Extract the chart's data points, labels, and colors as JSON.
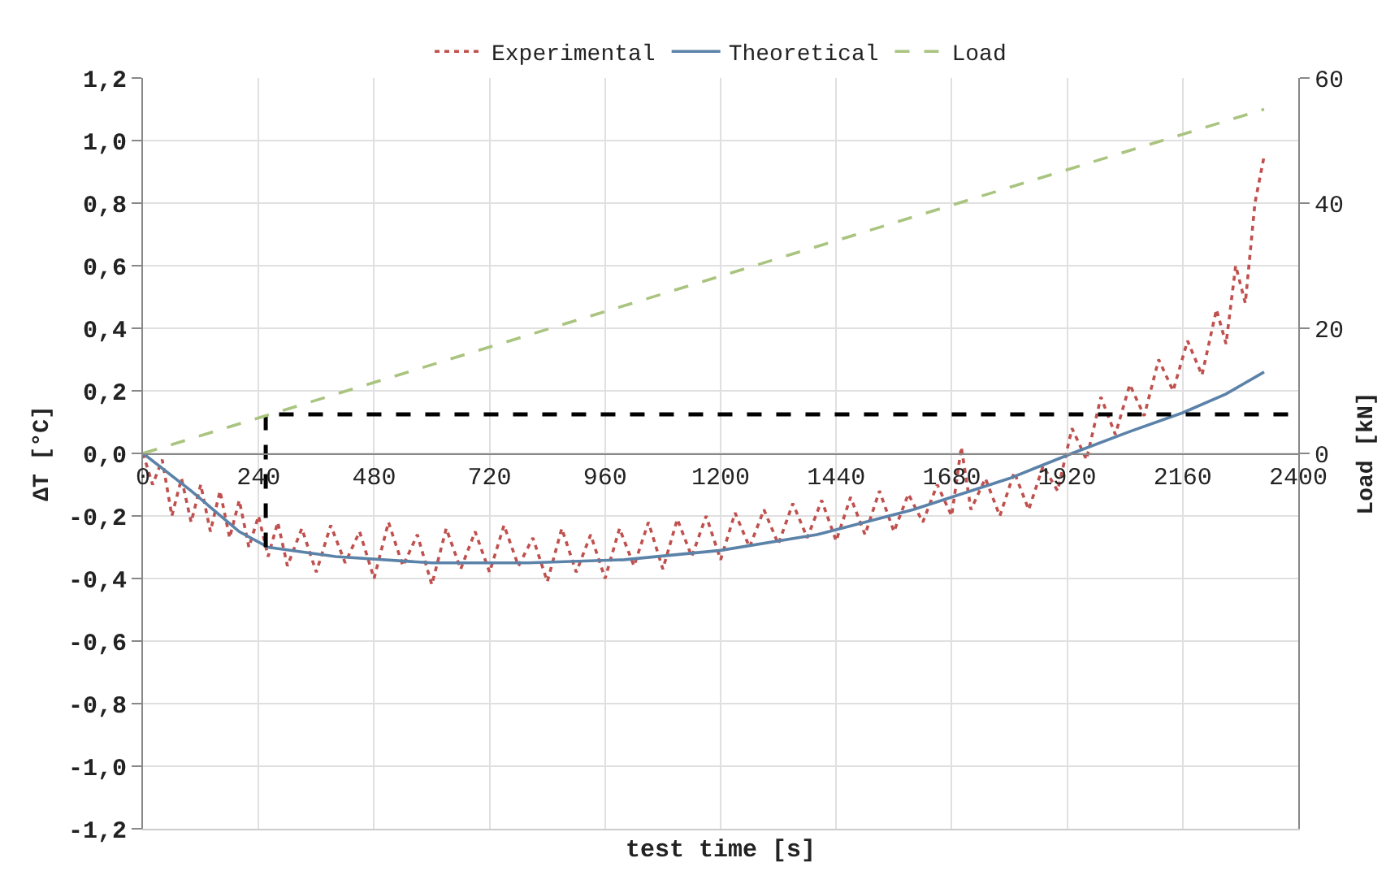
{
  "chart_data": {
    "type": "line",
    "xlabel": "test time [s]",
    "ylabel": "ΔT [°C]",
    "y2label": "Load [kN]",
    "xlim": [
      0,
      2400
    ],
    "xticks": [
      0,
      240,
      480,
      720,
      960,
      1200,
      1440,
      1680,
      1920,
      2160,
      2400
    ],
    "ylim": [
      -1.2,
      1.2
    ],
    "yticks": [
      {
        "value": -1.2,
        "label": "-1,2"
      },
      {
        "value": -1.0,
        "label": "-1,0"
      },
      {
        "value": -0.8,
        "label": "-0,8"
      },
      {
        "value": -0.6,
        "label": "-0,6"
      },
      {
        "value": -0.4,
        "label": "-0,4"
      },
      {
        "value": -0.2,
        "label": "-0,2"
      },
      {
        "value": 0,
        "label": "0,0"
      },
      {
        "value": 0.2,
        "label": "0,2"
      },
      {
        "value": 0.4,
        "label": "0,4"
      },
      {
        "value": 0.6,
        "label": "0,6"
      },
      {
        "value": 0.8,
        "label": "0,8"
      },
      {
        "value": 1.0,
        "label": "1,0"
      },
      {
        "value": 1.2,
        "label": "1,2"
      }
    ],
    "y2lim": [
      -60,
      60
    ],
    "y2ticks": [
      0,
      20,
      40,
      60
    ],
    "grid": true,
    "legend": "top",
    "marker": "none",
    "series": [
      {
        "name": "Experimental",
        "color": "#c0504d",
        "line_style": "dotted",
        "x": [
          0,
          20,
          40,
          60,
          80,
          100,
          120,
          140,
          160,
          180,
          200,
          220,
          240,
          260,
          280,
          300,
          330,
          360,
          390,
          420,
          450,
          480,
          510,
          540,
          570,
          600,
          630,
          660,
          690,
          720,
          750,
          780,
          810,
          840,
          870,
          900,
          930,
          960,
          990,
          1020,
          1050,
          1080,
          1110,
          1140,
          1170,
          1200,
          1230,
          1260,
          1290,
          1320,
          1350,
          1380,
          1410,
          1440,
          1470,
          1500,
          1530,
          1560,
          1590,
          1620,
          1650,
          1680,
          1700,
          1720,
          1750,
          1780,
          1810,
          1840,
          1870,
          1900,
          1930,
          1960,
          1990,
          2020,
          2050,
          2080,
          2110,
          2140,
          2170,
          2200,
          2230,
          2250,
          2270,
          2290,
          2310,
          2329
        ],
        "values": [
          0.0,
          -0.1,
          -0.02,
          -0.2,
          -0.08,
          -0.22,
          -0.1,
          -0.25,
          -0.12,
          -0.27,
          -0.15,
          -0.3,
          -0.2,
          -0.33,
          -0.22,
          -0.36,
          -0.24,
          -0.38,
          -0.23,
          -0.35,
          -0.25,
          -0.4,
          -0.22,
          -0.36,
          -0.26,
          -0.42,
          -0.24,
          -0.37,
          -0.25,
          -0.38,
          -0.23,
          -0.36,
          -0.27,
          -0.41,
          -0.24,
          -0.38,
          -0.26,
          -0.4,
          -0.24,
          -0.36,
          -0.22,
          -0.37,
          -0.21,
          -0.33,
          -0.2,
          -0.34,
          -0.19,
          -0.3,
          -0.18,
          -0.29,
          -0.16,
          -0.27,
          -0.15,
          -0.28,
          -0.14,
          -0.26,
          -0.12,
          -0.25,
          -0.13,
          -0.22,
          -0.1,
          -0.2,
          0.02,
          -0.18,
          -0.08,
          -0.2,
          -0.06,
          -0.18,
          -0.04,
          -0.12,
          0.08,
          -0.02,
          0.18,
          0.06,
          0.22,
          0.12,
          0.3,
          0.2,
          0.36,
          0.25,
          0.46,
          0.35,
          0.6,
          0.48,
          0.8,
          0.95
        ]
      },
      {
        "name": "Theoretical",
        "color": "#5b82a8",
        "line_style": "solid",
        "x": [
          0,
          100,
          200,
          260,
          400,
          600,
          800,
          1000,
          1200,
          1400,
          1600,
          1800,
          1930,
          2050,
          2160,
          2250,
          2329
        ],
        "values": [
          0,
          -0.12,
          -0.25,
          -0.3,
          -0.33,
          -0.35,
          -0.35,
          -0.34,
          -0.31,
          -0.26,
          -0.18,
          -0.08,
          0,
          0.07,
          0.13,
          0.19,
          0.26
        ]
      },
      {
        "name": "Load",
        "color": "#a9c47f",
        "line_style": "dashed",
        "axis": "y2",
        "x": [
          0,
          2329
        ],
        "values": [
          0,
          55
        ]
      },
      {
        "color": "#000000",
        "line_style": "dashed",
        "x": [
          255,
          255,
          2400
        ],
        "values": [
          -0.3,
          0.125,
          0.125
        ]
      }
    ]
  }
}
